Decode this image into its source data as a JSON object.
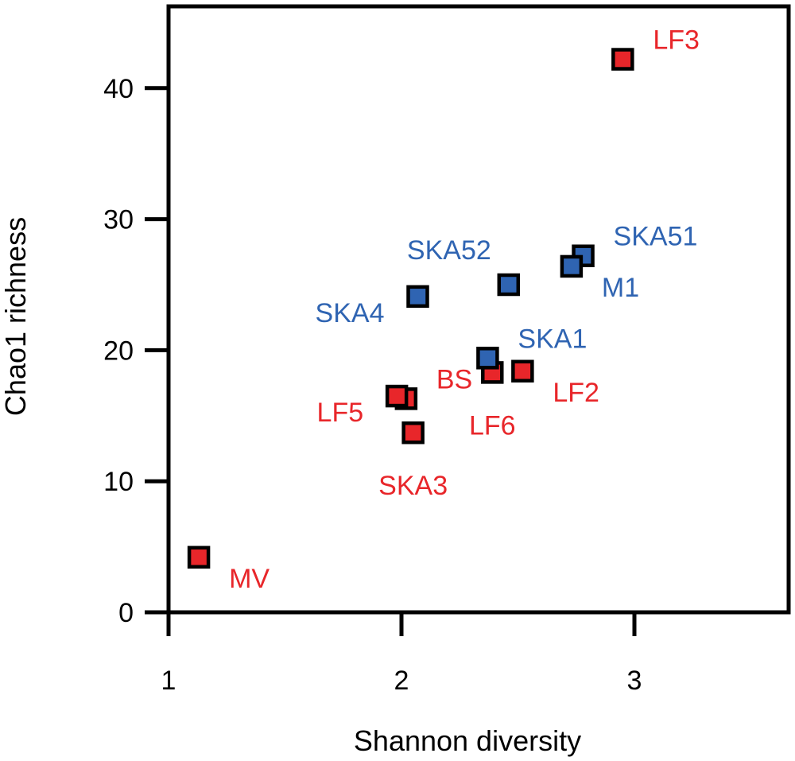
{
  "chart_data": {
    "type": "scatter",
    "xlabel": "Shannon diversity",
    "ylabel": "Chao1 richness",
    "xlim": [
      1,
      3.65
    ],
    "ylim": [
      0,
      47
    ],
    "xticks": [
      1,
      2,
      3
    ],
    "yticks": [
      0,
      10,
      20,
      30,
      40
    ],
    "grid": false,
    "colors": {
      "red": "#e8262a",
      "blue": "#2f64b2",
      "outline": "#000000"
    },
    "series": [
      {
        "name": "red",
        "color": "#e8262a",
        "points": [
          {
            "label": "LF3",
            "x": 2.95,
            "y": 42.2,
            "label_pos": "upper-right"
          },
          {
            "label": "LF2",
            "x": 2.52,
            "y": 18.4,
            "label_pos": "lower-right"
          },
          {
            "label": "LF6",
            "x": 2.39,
            "y": 18.3,
            "label_pos": "below"
          },
          {
            "label": "BS",
            "x": 2.02,
            "y": 16.3,
            "label_pos": "upper-right"
          },
          {
            "label": "LF5",
            "x": 1.98,
            "y": 16.5,
            "label_pos": "lower-left"
          },
          {
            "label": "SKA3",
            "x": 2.05,
            "y": 13.7,
            "label_pos": "below"
          },
          {
            "label": "MV",
            "x": 1.13,
            "y": 4.2,
            "label_pos": "lower-right"
          }
        ]
      },
      {
        "name": "blue",
        "color": "#2f64b2",
        "points": [
          {
            "label": "SKA51",
            "x": 2.78,
            "y": 27.2,
            "label_pos": "upper-right"
          },
          {
            "label": "M1",
            "x": 2.73,
            "y": 26.4,
            "label_pos": "lower-right"
          },
          {
            "label": "SKA52",
            "x": 2.46,
            "y": 25.0,
            "label_pos": "upper-left"
          },
          {
            "label": "SKA4",
            "x": 2.07,
            "y": 24.1,
            "label_pos": "lower-left"
          },
          {
            "label": "SKA1",
            "x": 2.37,
            "y": 19.4,
            "label_pos": "upper-right"
          }
        ]
      }
    ]
  }
}
